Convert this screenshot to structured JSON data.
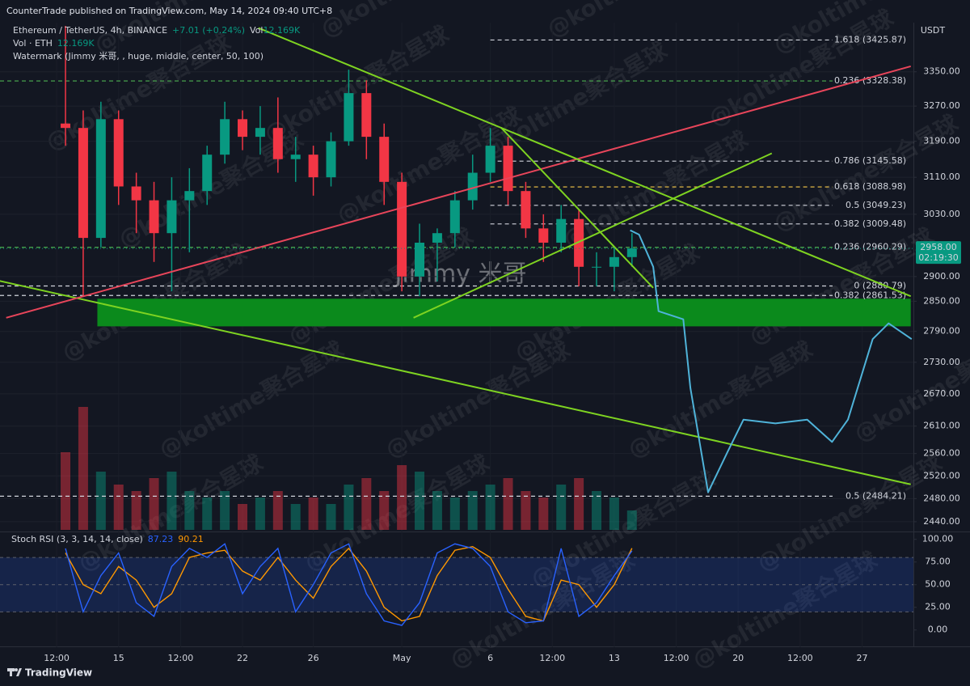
{
  "header": {
    "publisher": "CounterTrade published on TradingView.com, May 14, 2024 09:40 UTC+8"
  },
  "footer": {
    "brand": "TradingView"
  },
  "watermarks": {
    "main": "Jimmy 米哥",
    "repeat": "@koltime聚合星球"
  },
  "chart_data": [
    {
      "type": "candlestick",
      "legend": {
        "symbol": "Ethereum / TetherUS, 4h, BINANCE",
        "change": "+7.01 (+0.24%)",
        "vol_label": "Vol",
        "vol_value": "12.169K",
        "vol_title": "Vol · ETH",
        "watermark": "Watermark (Jimmy 米哥, , huge, middle, center, 50, 100)"
      },
      "currency": "USDT",
      "log_scale": true,
      "grid": true,
      "up_color": "#089981",
      "down_color": "#f23645",
      "x": [
        12,
        13,
        14,
        15,
        16,
        17,
        18,
        19,
        20,
        21,
        22,
        23,
        24,
        25,
        26,
        27,
        28,
        29,
        30,
        31,
        32,
        33,
        34,
        35,
        36,
        37,
        38,
        39,
        40,
        41,
        42,
        43,
        44
      ],
      "open": [
        3230,
        3220,
        2980,
        3240,
        3090,
        3060,
        2990,
        3060,
        3080,
        3160,
        3240,
        3200,
        3220,
        3150,
        3160,
        3110,
        3190,
        3300,
        3200,
        3100,
        2900,
        2970,
        2990,
        3060,
        3120,
        3180,
        3080,
        3000,
        2970,
        3020,
        2920,
        2920,
        2940
      ],
      "high": [
        3460,
        3260,
        3280,
        3260,
        3120,
        3100,
        3110,
        3130,
        3180,
        3280,
        3260,
        3270,
        3290,
        3200,
        3180,
        3210,
        3355,
        3330,
        3230,
        3120,
        3010,
        3000,
        3080,
        3160,
        3220,
        3200,
        3100,
        3030,
        3050,
        3040,
        2950,
        2960,
        2990
      ],
      "low": [
        3180,
        2860,
        2960,
        3050,
        2990,
        2930,
        2870,
        2950,
        3050,
        3140,
        3170,
        3160,
        3120,
        3100,
        3070,
        3090,
        3180,
        3150,
        3050,
        2870,
        2860,
        2890,
        2960,
        3040,
        3100,
        3050,
        2980,
        2930,
        2950,
        2880,
        2880,
        2870,
        2920
      ],
      "close": [
        3220,
        2980,
        3240,
        3090,
        3060,
        2990,
        3060,
        3080,
        3160,
        3240,
        3200,
        3220,
        3150,
        3160,
        3110,
        3190,
        3300,
        3200,
        3100,
        2900,
        2970,
        2990,
        3060,
        3120,
        3180,
        3080,
        3000,
        2970,
        3020,
        2920,
        2920,
        2940,
        2958
      ],
      "volume": [
        60,
        95,
        45,
        35,
        30,
        40,
        45,
        30,
        25,
        30,
        20,
        25,
        30,
        20,
        25,
        20,
        35,
        40,
        30,
        50,
        45,
        30,
        25,
        30,
        35,
        40,
        30,
        25,
        35,
        40,
        30,
        25,
        15
      ],
      "vlim": [
        0,
        100
      ],
      "xlim": [
        8.3,
        59.9
      ],
      "xticks": [
        {
          "value": 11.5,
          "label": "12:00"
        },
        {
          "value": 15,
          "label": "15"
        },
        {
          "value": 18.5,
          "label": "12:00"
        },
        {
          "value": 22,
          "label": "22"
        },
        {
          "value": 26,
          "label": "26"
        },
        {
          "value": 31,
          "label": "May"
        },
        {
          "value": 36,
          "label": "6"
        },
        {
          "value": 39.5,
          "label": "12:00"
        },
        {
          "value": 43,
          "label": "13"
        },
        {
          "value": 46.5,
          "label": "12:00"
        },
        {
          "value": 50,
          "label": "20"
        },
        {
          "value": 53.5,
          "label": "12:00"
        },
        {
          "value": 57,
          "label": "27"
        }
      ],
      "ylim": [
        2426,
        3464
      ],
      "yticks": [
        {
          "value": 2440,
          "label": "2440.00"
        },
        {
          "value": 2480,
          "label": "2480.00"
        },
        {
          "value": 2520,
          "label": "2520.00"
        },
        {
          "value": 2560,
          "label": "2560.00"
        },
        {
          "value": 2610,
          "label": "2610.00"
        },
        {
          "value": 2670,
          "label": "2670.00"
        },
        {
          "value": 2730,
          "label": "2730.00"
        },
        {
          "value": 2790,
          "label": "2790.00"
        },
        {
          "value": 2850,
          "label": "2850.00"
        },
        {
          "value": 2900,
          "label": "2900.00"
        },
        {
          "value": 3030,
          "label": "3030.00"
        },
        {
          "value": 3110,
          "label": "3110.00"
        },
        {
          "value": 3190,
          "label": "3190.00"
        },
        {
          "value": 3270,
          "label": "3270.00"
        },
        {
          "value": 3350,
          "label": "3350.00"
        }
      ],
      "last_price": {
        "value": 2958,
        "label": "2958.00",
        "countdown": "02:19:30",
        "color": "#089981"
      },
      "fib_levels": [
        {
          "value": 3425.87,
          "label": "1.618 (3425.87)",
          "color": "#d1d4dc",
          "from": 36
        },
        {
          "value": 3328.38,
          "label": "0.236 (3328.38)",
          "color": "#4caf50",
          "from": 8.3
        },
        {
          "value": 3145.58,
          "label": "0.786 (3145.58)",
          "color": "#d1d4dc",
          "from": 36
        },
        {
          "value": 3088.98,
          "label": "0.618 (3088.98)",
          "color": "#f7c948",
          "from": 36
        },
        {
          "value": 3049.23,
          "label": "0.5 (3049.23)",
          "color": "#d1d4dc",
          "from": 36
        },
        {
          "value": 3009.48,
          "label": "0.382 (3009.48)",
          "color": "#d1d4dc",
          "from": 36
        },
        {
          "value": 2960.29,
          "label": "0.236 (2960.29)",
          "color": "#4caf50",
          "from": 8.3
        },
        {
          "value": 2880.79,
          "label": "0 (2880.79)",
          "color": "#d1d4dc",
          "from": 8.3
        },
        {
          "value": 2861.53,
          "label": "0.382 (2861.53)",
          "color": "#d1d4dc",
          "from": 8.3
        },
        {
          "value": 2484.21,
          "label": "0.5 (2484.21)",
          "color": "#d1d4dc",
          "from": 8.3
        }
      ],
      "trend_lines": [
        {
          "color": "#7ed321",
          "x": [
            8.29,
            59.75
          ],
          "y": [
            2891,
            2505
          ]
        },
        {
          "color": "#e8455a",
          "x": [
            8.65,
            59.75
          ],
          "y": [
            2817,
            3363
          ]
        },
        {
          "color": "#7ed321",
          "x": [
            22.9,
            59.75
          ],
          "y": [
            3455,
            2860
          ]
        },
        {
          "color": "#7ed321",
          "x": [
            36.6,
            45.2
          ],
          "y": [
            3221,
            2877
          ]
        },
        {
          "color": "#7ed321",
          "x": [
            31.66,
            51.9
          ],
          "y": [
            2817,
            3163
          ]
        }
      ],
      "zone": {
        "color": "#0b8a1c",
        "x": [
          13.8,
          59.75
        ],
        "y": [
          2800,
          2855
        ]
      },
      "projection": {
        "color": "#4fb3d9",
        "x": [
          43.9,
          44.4,
          45.2,
          45.5,
          46.9,
          47.3,
          48.3,
          49.4,
          50.3,
          52.1,
          53.9,
          55.3,
          56.2,
          57.6,
          58.5,
          59.8
        ],
        "y": [
          2996,
          2987,
          2920,
          2830,
          2814,
          2681,
          2491,
          2563,
          2622,
          2615,
          2622,
          2581,
          2622,
          2775,
          2806,
          2775
        ]
      }
    },
    {
      "type": "line",
      "title": "Stoch RSI (3, 3, 14, 14, close)",
      "x": [
        12,
        13,
        14,
        15,
        16,
        17,
        18,
        19,
        20,
        21,
        22,
        23,
        24,
        25,
        26,
        27,
        28,
        29,
        30,
        31,
        32,
        33,
        34,
        35,
        36,
        37,
        38,
        39,
        40,
        41,
        42,
        43,
        44
      ],
      "series": [
        {
          "color": "#2962ff",
          "values": [
            90,
            20,
            60,
            85,
            30,
            15,
            70,
            90,
            80,
            95,
            40,
            70,
            90,
            20,
            50,
            85,
            95,
            40,
            10,
            5,
            30,
            85,
            95,
            90,
            70,
            20,
            8,
            10,
            90,
            15,
            30,
            60,
            87.23
          ]
        },
        {
          "color": "#ff9800",
          "values": [
            85,
            50,
            40,
            70,
            55,
            25,
            40,
            80,
            85,
            88,
            65,
            55,
            80,
            55,
            35,
            70,
            90,
            65,
            25,
            10,
            15,
            60,
            88,
            92,
            80,
            45,
            15,
            10,
            55,
            50,
            25,
            50,
            90.21
          ]
        }
      ],
      "band": [
        20,
        80
      ],
      "band_color": "rgba(41,98,255,0.18)",
      "levels": [
        80,
        50,
        20
      ],
      "xlim": [
        8.3,
        59.9
      ],
      "ylim": [
        -19,
        106
      ],
      "yticks": [
        {
          "value": 0,
          "label": "0.00"
        },
        {
          "value": 25,
          "label": "25.00"
        },
        {
          "value": 50,
          "label": "50.00"
        },
        {
          "value": 75,
          "label": "75.00"
        },
        {
          "value": 100,
          "label": "100.00"
        }
      ]
    }
  ]
}
